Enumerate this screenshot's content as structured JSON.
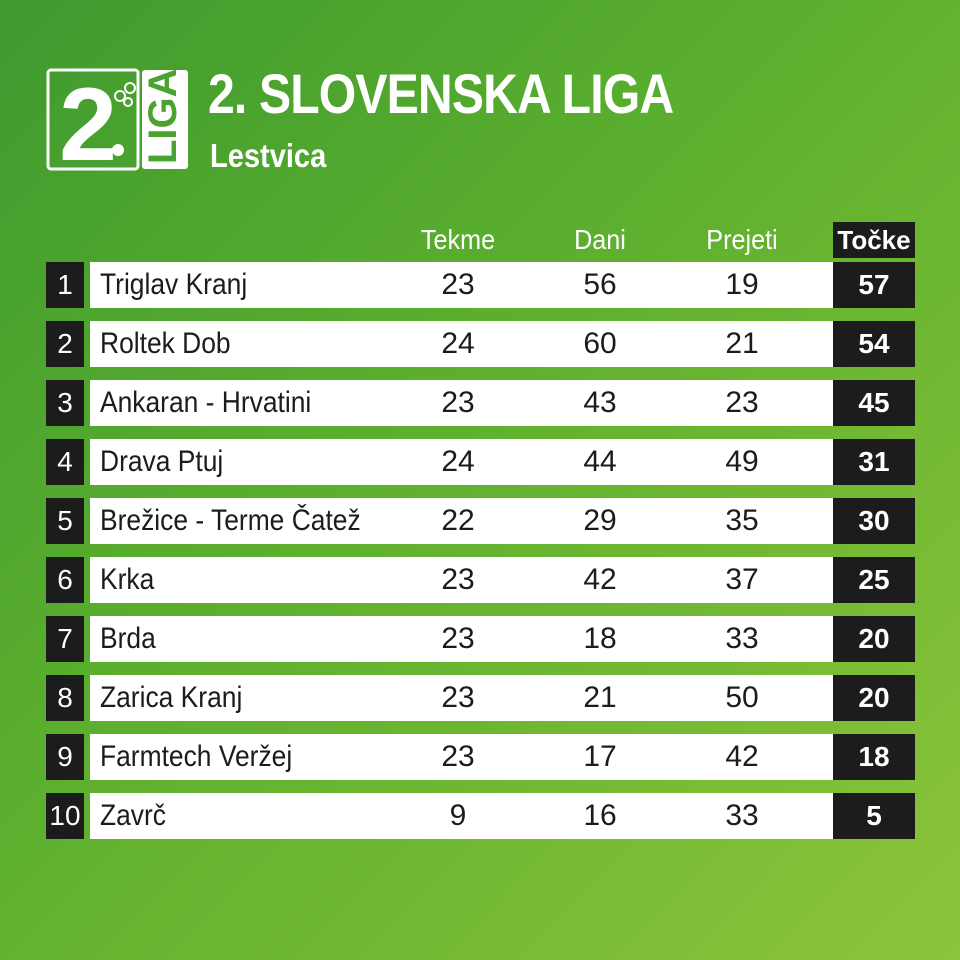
{
  "header": {
    "title": "2. SLOVENSKA LIGA",
    "subtitle": "Lestvica",
    "logo_text": "2. LIGA"
  },
  "columns": {
    "games": "Tekme",
    "scored": "Dani",
    "conceded": "Prejeti",
    "points": "Točke"
  },
  "colors": {
    "background_start": "#3f9a2f",
    "background_end": "#8cc43a",
    "row_bg": "#ffffff",
    "dark_cell": "#1c1c1c"
  },
  "standings": [
    {
      "rank": "1",
      "team": "Triglav Kranj",
      "games": "23",
      "scored": "56",
      "conceded": "19",
      "points": "57"
    },
    {
      "rank": "2",
      "team": "Roltek Dob",
      "games": "24",
      "scored": "60",
      "conceded": "21",
      "points": "54"
    },
    {
      "rank": "3",
      "team": "Ankaran - Hrvatini",
      "games": "23",
      "scored": "43",
      "conceded": "23",
      "points": "45"
    },
    {
      "rank": "4",
      "team": "Drava Ptuj",
      "games": "24",
      "scored": "44",
      "conceded": "49",
      "points": "31"
    },
    {
      "rank": "5",
      "team": "Brežice - Terme Čatež",
      "games": "22",
      "scored": "29",
      "conceded": "35",
      "points": "30"
    },
    {
      "rank": "6",
      "team": "Krka",
      "games": "23",
      "scored": "42",
      "conceded": "37",
      "points": "25"
    },
    {
      "rank": "7",
      "team": "Brda",
      "games": "23",
      "scored": "18",
      "conceded": "33",
      "points": "20"
    },
    {
      "rank": "8",
      "team": "Zarica Kranj",
      "games": "23",
      "scored": "21",
      "conceded": "50",
      "points": "20"
    },
    {
      "rank": "9",
      "team": "Farmtech Veržej",
      "games": "23",
      "scored": "17",
      "conceded": "42",
      "points": "18"
    },
    {
      "rank": "10",
      "team": "Zavrč",
      "games": "9",
      "scored": "16",
      "conceded": "33",
      "points": "5"
    }
  ]
}
